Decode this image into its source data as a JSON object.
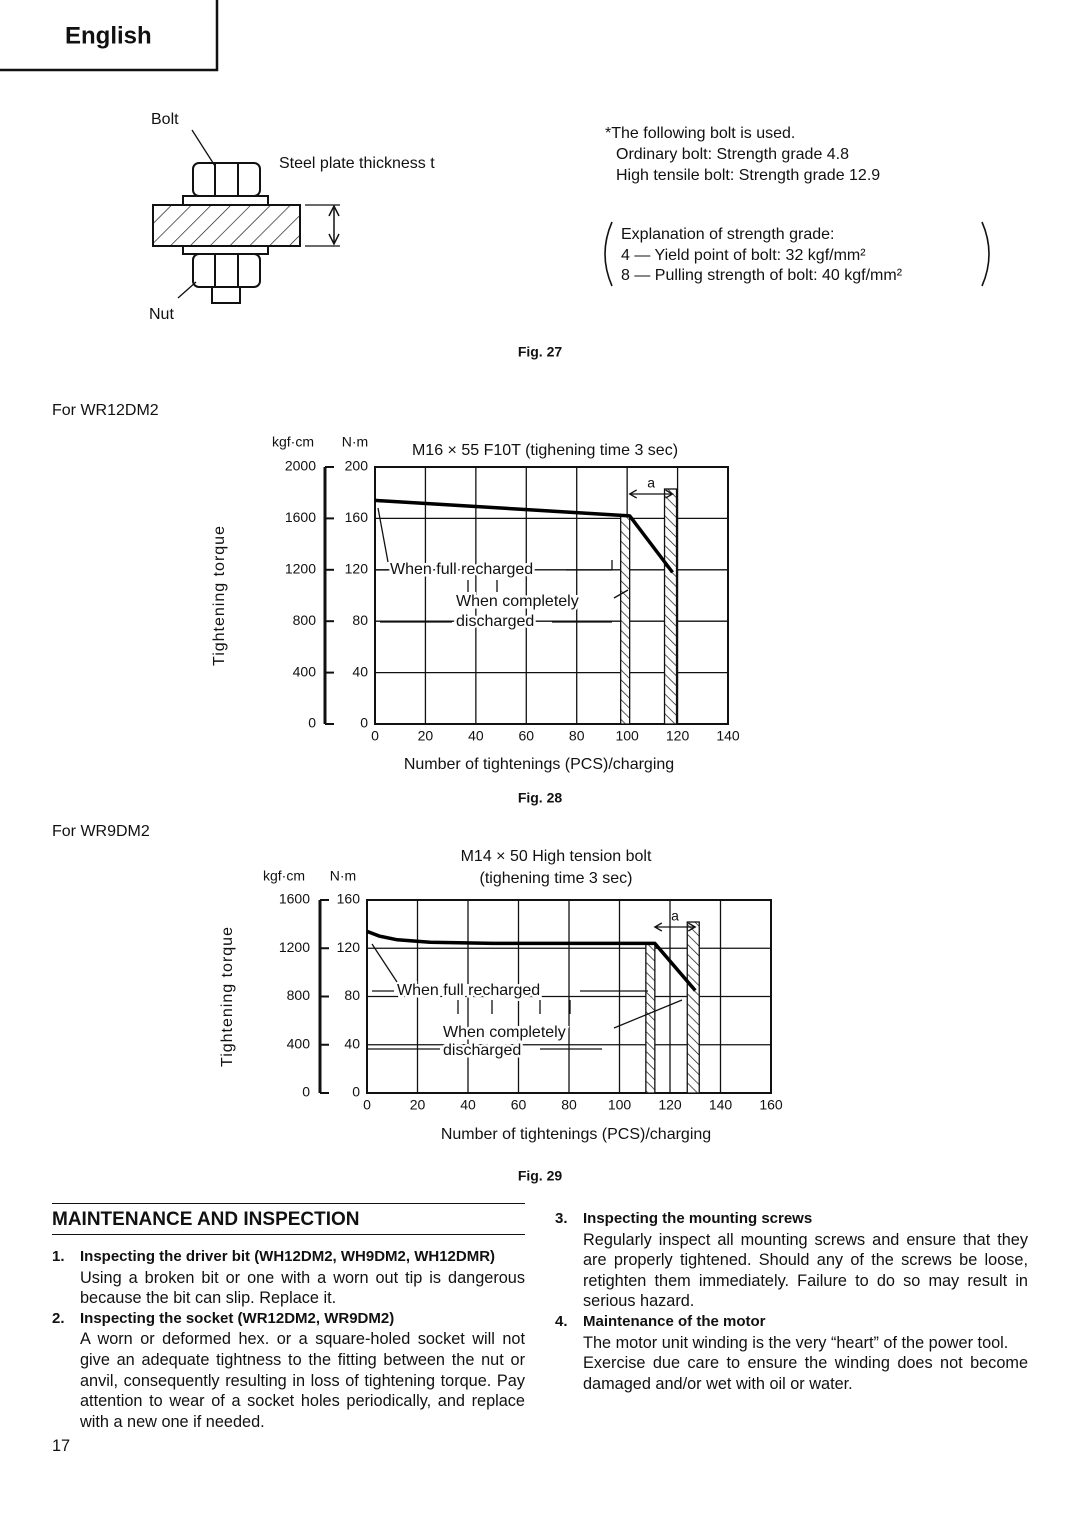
{
  "header": {
    "language": "English"
  },
  "fig27": {
    "bolt": "Bolt",
    "steel_plate": "Steel plate thickness t",
    "nut": "Nut",
    "notes": [
      "*The following bolt is used.",
      "Ordinary bolt: Strength grade  4.8",
      "High tensile bolt: Strength grade  12.9"
    ],
    "explanation": [
      "Explanation of strength grade:",
      "4 — Yield point of bolt: 32 kgf/mm²",
      "8 — Pulling strength of bolt: 40 kgf/mm²"
    ],
    "caption": "Fig. 27"
  },
  "chart_data": [
    {
      "type": "line",
      "subtitle": "For WR12DM2",
      "title": [
        "M16 × 55 F10T (tighening time 3 sec)"
      ],
      "y_label": "Tightening torque",
      "x_label": "Number of tightenings (PCS)/charging",
      "y_unit": "N·m",
      "y2_unit": "kgf·cm",
      "caption": "Fig. 28",
      "x": [
        0,
        101,
        118
      ],
      "values": [
        174,
        162,
        118
      ],
      "color": "#000000",
      "xlim": [
        0,
        140
      ],
      "xticks": [
        0,
        20,
        40,
        60,
        80,
        100,
        120,
        140
      ],
      "ylim": [
        0,
        200
      ],
      "yticks": [
        0,
        40,
        80,
        120,
        160,
        200
      ],
      "y2lim": [
        0,
        2000
      ],
      "y2ticks": [
        0,
        400,
        800,
        1200,
        1600,
        2000
      ],
      "grid": true,
      "annotations": [
        "When full recharged",
        "When  completely",
        "discharged",
        "a"
      ]
    },
    {
      "type": "line",
      "subtitle": "For WR9DM2",
      "title": [
        "M14 × 50 High tension bolt",
        "(tighening time 3 sec)"
      ],
      "y_label": "Tightening torque",
      "x_label": "Number of tightenings (PCS)/charging",
      "y_unit": "N·m",
      "y2_unit": "kgf·cm",
      "caption": "Fig. 29",
      "x": [
        0,
        5,
        12,
        25,
        50,
        114,
        130
      ],
      "values": [
        134,
        130,
        127,
        125,
        124,
        124,
        85
      ],
      "color": "#000000",
      "xlim": [
        0,
        160
      ],
      "xticks": [
        0,
        20,
        40,
        60,
        80,
        100,
        120,
        140,
        160
      ],
      "ylim": [
        0,
        160
      ],
      "yticks": [
        0,
        40,
        80,
        120,
        160
      ],
      "y2lim": [
        0,
        1600
      ],
      "y2ticks": [
        0,
        400,
        800,
        1200,
        1600
      ],
      "grid": true,
      "annotations": [
        "When full recharged",
        "When completely",
        "discharged",
        "a"
      ]
    }
  ],
  "maintenance": {
    "title": "MAINTENANCE AND INSPECTION",
    "items": [
      {
        "number": "1.",
        "heading": "Inspecting the driver bit (WH12DM2, WH9DM2, WH12DMR)",
        "body": [
          "Using a broken bit or one with a worn out tip is dangerous because the bit can slip. Replace it."
        ]
      },
      {
        "number": "2.",
        "heading": "Inspecting the socket (WR12DM2, WR9DM2)",
        "body": [
          "A worn or deformed hex. or a square-holed socket will not give an adequate tightness to the fitting between the nut or anvil, consequently resulting in loss of tightening torque. Pay attention to wear of a socket holes periodically, and replace with a new one if needed."
        ]
      },
      {
        "number": "3.",
        "heading": "Inspecting the mounting screws",
        "body": [
          "Regularly inspect all mounting screws and ensure that they are properly tightened. Should any of the screws be loose, retighten them immediately. Failure to do so may result in serious hazard."
        ]
      },
      {
        "number": "4.",
        "heading": "Maintenance of the motor",
        "body": [
          "The motor unit winding is the very “heart” of the power tool.",
          "Exercise due care to ensure the winding does not become damaged and/or wet with oil or water."
        ]
      }
    ]
  },
  "page_number": "17"
}
